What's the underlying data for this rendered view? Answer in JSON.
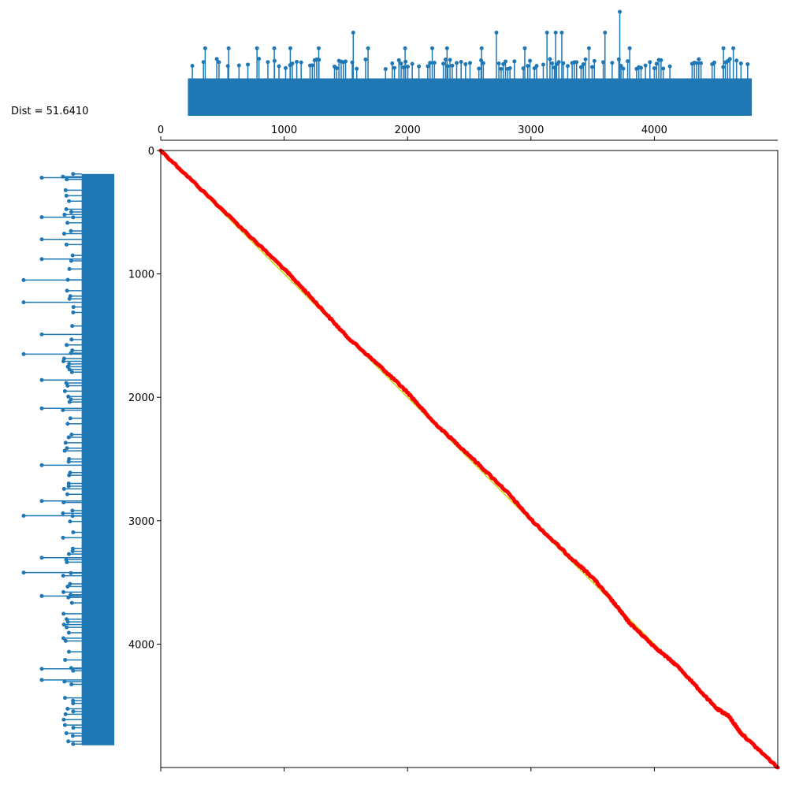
{
  "annotation": {
    "text": "Dist = 51.6410"
  },
  "colors": {
    "stem": "#1f77b4",
    "path": "#ff0000",
    "reference_line": "#c8d400",
    "frame": "#000000"
  },
  "chart_data": [
    {
      "type": "stem",
      "name": "top-series",
      "title": "",
      "xlabel": "",
      "ylabel": "",
      "xlim": [
        0,
        5000
      ],
      "ylim": [
        0,
        100
      ],
      "x_ticks": [
        "0",
        "1000",
        "2000",
        "3000",
        "4000"
      ],
      "x_tick_values": [
        0,
        1000,
        2000,
        3000,
        4000
      ],
      "grid": false,
      "baseline_level": 10,
      "base_level": 36,
      "base_x_range": [
        220,
        4790
      ],
      "notable_peaks": [
        {
          "x": 3720,
          "y": 100
        },
        {
          "x": 1560,
          "y": 80
        },
        {
          "x": 2720,
          "y": 80
        },
        {
          "x": 3130,
          "y": 80
        },
        {
          "x": 3200,
          "y": 80
        },
        {
          "x": 3250,
          "y": 80
        },
        {
          "x": 3600,
          "y": 80
        },
        {
          "x": 360,
          "y": 65
        },
        {
          "x": 550,
          "y": 65
        },
        {
          "x": 780,
          "y": 65
        },
        {
          "x": 920,
          "y": 65
        },
        {
          "x": 1050,
          "y": 65
        },
        {
          "x": 1280,
          "y": 65
        },
        {
          "x": 1680,
          "y": 65
        },
        {
          "x": 1980,
          "y": 65
        },
        {
          "x": 2200,
          "y": 65
        },
        {
          "x": 2320,
          "y": 65
        },
        {
          "x": 2600,
          "y": 65
        },
        {
          "x": 2950,
          "y": 65
        },
        {
          "x": 3470,
          "y": 65
        },
        {
          "x": 3800,
          "y": 65
        },
        {
          "x": 4560,
          "y": 65
        },
        {
          "x": 4640,
          "y": 65
        }
      ]
    },
    {
      "type": "stem",
      "name": "left-series",
      "title": "",
      "xlabel": "",
      "ylabel": "",
      "orientation": "horizontal",
      "ylim": [
        0,
        5000
      ],
      "grid": false,
      "base_level": 36,
      "base_y_range": [
        190,
        4820
      ],
      "notable_peaks": [
        {
          "y": 1050,
          "x": 100
        },
        {
          "y": 1230,
          "x": 100
        },
        {
          "y": 1650,
          "x": 100
        },
        {
          "y": 2960,
          "x": 100
        },
        {
          "y": 3420,
          "x": 100
        },
        {
          "y": 220,
          "x": 80
        },
        {
          "y": 540,
          "x": 80
        },
        {
          "y": 720,
          "x": 80
        },
        {
          "y": 880,
          "x": 80
        },
        {
          "y": 1490,
          "x": 80
        },
        {
          "y": 1860,
          "x": 80
        },
        {
          "y": 2090,
          "x": 80
        },
        {
          "y": 2550,
          "x": 80
        },
        {
          "y": 2840,
          "x": 80
        },
        {
          "y": 3300,
          "x": 80
        },
        {
          "y": 3610,
          "x": 80
        },
        {
          "y": 4200,
          "x": 80
        },
        {
          "y": 4290,
          "x": 80
        }
      ]
    },
    {
      "type": "line",
      "name": "warping-path",
      "title": "",
      "xlabel": "",
      "ylabel": "",
      "xlim": [
        0,
        5000
      ],
      "ylim": [
        5000,
        0
      ],
      "y_inverted": true,
      "x_ticks": [
        "",
        "",
        "",
        "",
        ""
      ],
      "x_tick_values": [
        0,
        1000,
        2000,
        3000,
        4000
      ],
      "y_ticks": [
        "0",
        "1000",
        "2000",
        "3000",
        "4000"
      ],
      "y_tick_values": [
        0,
        1000,
        2000,
        3000,
        4000
      ],
      "grid": false,
      "reference_line": [
        [
          0,
          0
        ],
        [
          5000,
          5000
        ]
      ],
      "series": [
        {
          "x": [
            0,
            500,
            1000,
            1200,
            1500,
            1800,
            2000,
            2200,
            2500,
            2800,
            3000,
            3300,
            3500,
            3700,
            3800,
            4000,
            4200,
            4500,
            4600,
            4700,
            5000
          ],
          "y": [
            0,
            480,
            960,
            1170,
            1500,
            1770,
            1960,
            2190,
            2470,
            2760,
            2990,
            3280,
            3460,
            3700,
            3830,
            4020,
            4190,
            4520,
            4580,
            4720,
            5000
          ]
        }
      ]
    }
  ]
}
